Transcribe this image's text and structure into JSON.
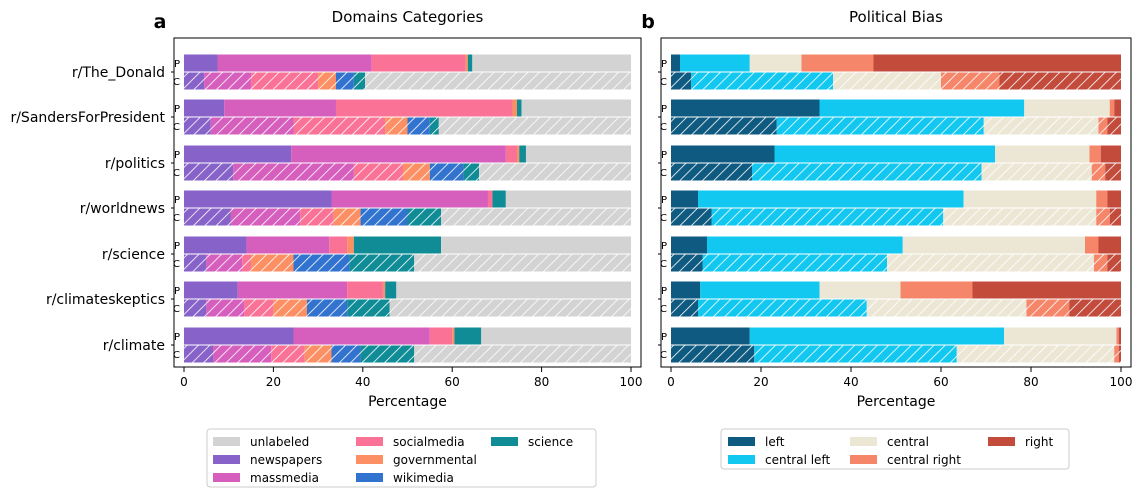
{
  "panel_labels": [
    "a",
    "b"
  ],
  "chart_data": [
    {
      "type": "bar",
      "orientation": "horizontal",
      "stacked": true,
      "title": "Domains Categories",
      "xlabel": "Percentage",
      "xlim": [
        0,
        100
      ],
      "xticks": [
        0,
        20,
        40,
        60,
        80,
        100
      ],
      "categories": [
        "r/The_Donald",
        "r/SandersForPresident",
        "r/politics",
        "r/worldnews",
        "r/science",
        "r/climateskeptics",
        "r/climate"
      ],
      "row_labels": [
        "P",
        "C"
      ],
      "row_style": {
        "P": "solid",
        "C": "hatched"
      },
      "legend_position": "below",
      "series": [
        {
          "name": "newspapers",
          "color": "#8762c8",
          "P": [
            7.5,
            9,
            24,
            33,
            14,
            12,
            24.5
          ],
          "C": [
            4.5,
            6,
            11,
            10.5,
            5,
            5,
            6.5
          ]
        },
        {
          "name": "massmedia",
          "color": "#d65fbd",
          "P": [
            34.5,
            25,
            48,
            35,
            18.5,
            24.5,
            30.5
          ],
          "C": [
            10.5,
            18.5,
            27,
            15.5,
            8,
            8.5,
            13
          ]
        },
        {
          "name": "socialmedia",
          "color": "#fa7396",
          "P": [
            21,
            39.5,
            2.5,
            1,
            4,
            8,
            5
          ],
          "C": [
            15,
            20.5,
            11,
            7.5,
            2,
            6.5,
            7.5
          ]
        },
        {
          "name": "governmental",
          "color": "#fc9064",
          "P": [
            0.5,
            1,
            0.5,
            0,
            1.5,
            0.5,
            0.5
          ],
          "C": [
            4,
            5,
            6,
            6,
            9.5,
            7.5,
            6
          ]
        },
        {
          "name": "wikimedia",
          "color": "#3273d0",
          "P": [
            0,
            0,
            0,
            0,
            0,
            0,
            0
          ],
          "C": [
            4,
            5,
            7.5,
            10.5,
            12.5,
            9,
            6.5
          ]
        },
        {
          "name": "science",
          "color": "#0f8c96",
          "P": [
            1,
            1,
            1.5,
            3,
            19.5,
            2.5,
            6
          ],
          "C": [
            2.5,
            2,
            3.5,
            7.5,
            14.5,
            9.5,
            12
          ]
        },
        {
          "name": "unlabeled",
          "color": "#d3d3d3",
          "P": [
            35.5,
            24.5,
            23.5,
            28,
            42.5,
            52.5,
            33.5
          ],
          "C": [
            59.5,
            43,
            34,
            42.5,
            48.5,
            54,
            48.5
          ]
        }
      ],
      "legend_order": [
        "unlabeled",
        "newspapers",
        "massmedia",
        "socialmedia",
        "governmental",
        "wikimedia",
        "science"
      ]
    },
    {
      "type": "bar",
      "orientation": "horizontal",
      "stacked": true,
      "title": "Political Bias",
      "xlabel": "Percentage",
      "xlim": [
        0,
        100
      ],
      "xticks": [
        0,
        20,
        40,
        60,
        80,
        100
      ],
      "categories": [
        "r/The_Donald",
        "r/SandersForPresident",
        "r/politics",
        "r/worldnews",
        "r/science",
        "r/climateskeptics",
        "r/climate"
      ],
      "row_labels": [
        "P",
        "C"
      ],
      "row_style": {
        "P": "solid",
        "C": "hatched"
      },
      "legend_position": "below",
      "series": [
        {
          "name": "left",
          "color": "#0f5a80",
          "P": [
            2,
            33,
            23,
            6,
            8,
            6.5,
            17.5
          ],
          "C": [
            4.5,
            23.5,
            18,
            9,
            7,
            6,
            18.5
          ]
        },
        {
          "name": "central left",
          "color": "#13c8f0",
          "P": [
            15.5,
            45.5,
            49,
            59,
            43.5,
            26.5,
            56.5
          ],
          "C": [
            31.5,
            46,
            51,
            51.5,
            41,
            37.5,
            45
          ]
        },
        {
          "name": "central",
          "color": "#ece7d5",
          "P": [
            11.5,
            19,
            21,
            29.5,
            40.5,
            18,
            25
          ],
          "C": [
            24,
            25.5,
            24.5,
            34,
            46,
            35.5,
            35
          ]
        },
        {
          "name": "central right",
          "color": "#f6866a",
          "P": [
            16,
            1,
            2.5,
            2.5,
            3,
            16,
            0.5
          ],
          "C": [
            13,
            2,
            3,
            3,
            3,
            9.5,
            1
          ]
        },
        {
          "name": "right",
          "color": "#c24b3c",
          "P": [
            55,
            1.5,
            4.5,
            3,
            5,
            33,
            0.5
          ],
          "C": [
            27,
            3,
            3.5,
            2.5,
            3,
            11.5,
            0.5
          ]
        }
      ],
      "legend_order": [
        "left",
        "central left",
        "central",
        "central right",
        "right"
      ]
    }
  ]
}
